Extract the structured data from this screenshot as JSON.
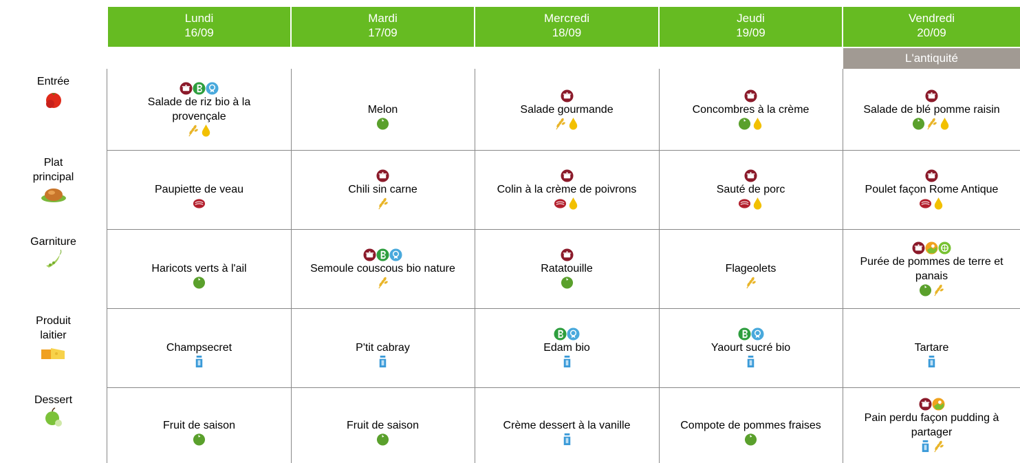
{
  "days": [
    {
      "name": "Lundi",
      "date": "16/09"
    },
    {
      "name": "Mardi",
      "date": "17/09"
    },
    {
      "name": "Mercredi",
      "date": "18/09"
    },
    {
      "name": "Jeudi",
      "date": "19/09"
    },
    {
      "name": "Vendredi",
      "date": "20/09"
    }
  ],
  "theme": "L'antiquité",
  "rows": [
    {
      "label": "Entrée",
      "dishes": [
        "Salade de riz bio à la provençale",
        "Melon",
        "Salade gourmande",
        "Concombres à la crème",
        "Salade de blé pomme raisin"
      ]
    },
    {
      "label": "Plat principal",
      "dishes": [
        "Paupiette de veau",
        "Chili sin carne",
        "Colin à la crème de poivrons",
        "Sauté de porc",
        "Poulet façon Rome Antique"
      ]
    },
    {
      "label": "Garniture",
      "dishes": [
        "Haricots verts à l'ail",
        "Semoule couscous bio nature",
        "Ratatouille",
        "Flageolets",
        "Purée de pommes de terre et panais"
      ]
    },
    {
      "label": "Produit laitier",
      "dishes": [
        "Champsecret",
        "P'tit cabray",
        "Edam bio",
        "Yaourt sucré bio",
        "Tartare"
      ]
    },
    {
      "label": "Dessert",
      "dishes": [
        "Fruit de saison",
        "Fruit de saison",
        "Crème dessert à la vanille",
        "Compote de pommes fraises",
        "Pain perdu façon pudding à partager"
      ]
    }
  ]
}
